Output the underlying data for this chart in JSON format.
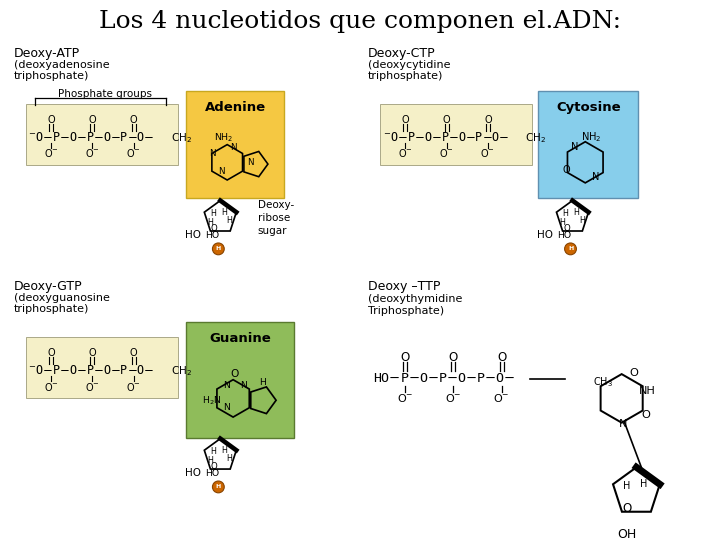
{
  "title": "Los 4 nucleotidos que componen el.ADN:",
  "background_color": "#ffffff",
  "top_left_label1": "Deoxy-ATP",
  "top_left_label2": "(deoxyadenosine",
  "top_left_label3": "triphosphate)",
  "top_left_sub": "Phosphate groups",
  "top_right_label1": "Deoxy-CTP",
  "top_right_label2": "(deoxycytidine",
  "top_right_label3": "triphosphate)",
  "bottom_left_label1": "Deoxy-GTP",
  "bottom_left_label2": "(deoxyguanosine",
  "bottom_left_label3": "triphosphate)",
  "bottom_right_label1": "Deoxy –TTP",
  "bottom_right_label2": "(deoxythymidine",
  "bottom_right_label3": "Triphosphate)",
  "adenine_label": "Adenine",
  "adenine_box_color": "#f5c842",
  "cytosine_label": "Cytosine",
  "cytosine_box_color": "#87ceeb",
  "guanine_label": "Guanine",
  "guanine_box_color": "#8fbc5a",
  "phosphate_box_color": "#f5f0c8",
  "deoxy_ribose_label": "Deoxy-\nribose\nsugar",
  "orange_dot_color": "#cc6600",
  "font_color": "#000000"
}
